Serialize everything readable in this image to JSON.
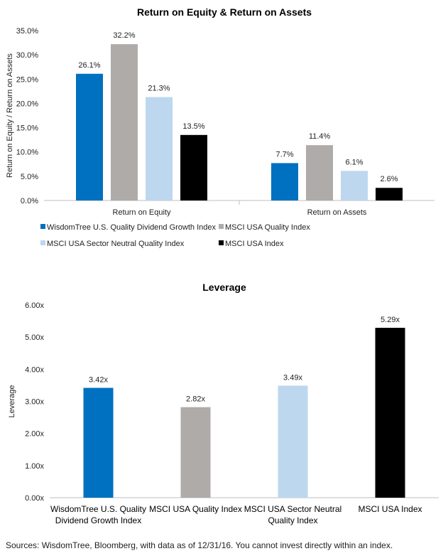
{
  "colors": {
    "wisdomtree": "#0070c0",
    "msci_quality": "#afaba9",
    "msci_sector_neutral": "#bdd7ee",
    "msci_usa": "#000000",
    "axis": "#bfbfbf"
  },
  "chart_data": [
    {
      "type": "bar",
      "title": "Return on Equity & Return on Assets",
      "ylabel": "Return on Equity / Return on Assets",
      "ylim": [
        0,
        35
      ],
      "yticks": [
        "0.0%",
        "5.0%",
        "10.0%",
        "15.0%",
        "20.0%",
        "25.0%",
        "30.0%",
        "35.0%"
      ],
      "categories": [
        "Return on Equity",
        "Return on Assets"
      ],
      "series": [
        {
          "name": "WisdomTree U.S. Quality Dividend Growth Index",
          "values": [
            26.1,
            7.7
          ],
          "labels": [
            "26.1%",
            "7.7%"
          ],
          "color": "#0070c0"
        },
        {
          "name": "MSCI USA Quality Index",
          "values": [
            32.2,
            11.4
          ],
          "labels": [
            "32.2%",
            "11.4%"
          ],
          "color": "#afaba9"
        },
        {
          "name": "MSCI USA Sector Neutral Quality Index",
          "values": [
            21.3,
            6.1
          ],
          "labels": [
            "21.3%",
            "6.1%"
          ],
          "color": "#bdd7ee"
        },
        {
          "name": "MSCI USA Index",
          "values": [
            13.5,
            2.6
          ],
          "labels": [
            "13.5%",
            "2.6%"
          ],
          "color": "#000000"
        }
      ],
      "legend": "bottom",
      "grid": false
    },
    {
      "type": "bar",
      "title": "Leverage",
      "ylabel": "Leverage",
      "ylim": [
        0,
        6
      ],
      "yticks": [
        "0.00x",
        "1.00x",
        "2.00x",
        "3.00x",
        "4.00x",
        "5.00x",
        "6.00x"
      ],
      "categories": [
        [
          "WisdomTree U.S. Quality",
          "Dividend Growth Index"
        ],
        [
          "MSCI USA Quality Index"
        ],
        [
          "MSCI USA Sector Neutral",
          "Quality Index"
        ],
        [
          "MSCI USA Index"
        ]
      ],
      "values": [
        3.42,
        2.82,
        3.49,
        5.29
      ],
      "labels": [
        "3.42x",
        "2.82x",
        "3.49x",
        "5.29x"
      ],
      "colors": [
        "#0070c0",
        "#afaba9",
        "#bdd7ee",
        "#000000"
      ],
      "grid": false
    }
  ],
  "source": "Sources: WisdomTree, Bloomberg, with data as of 12/31/16. You cannot invest directly within an index."
}
